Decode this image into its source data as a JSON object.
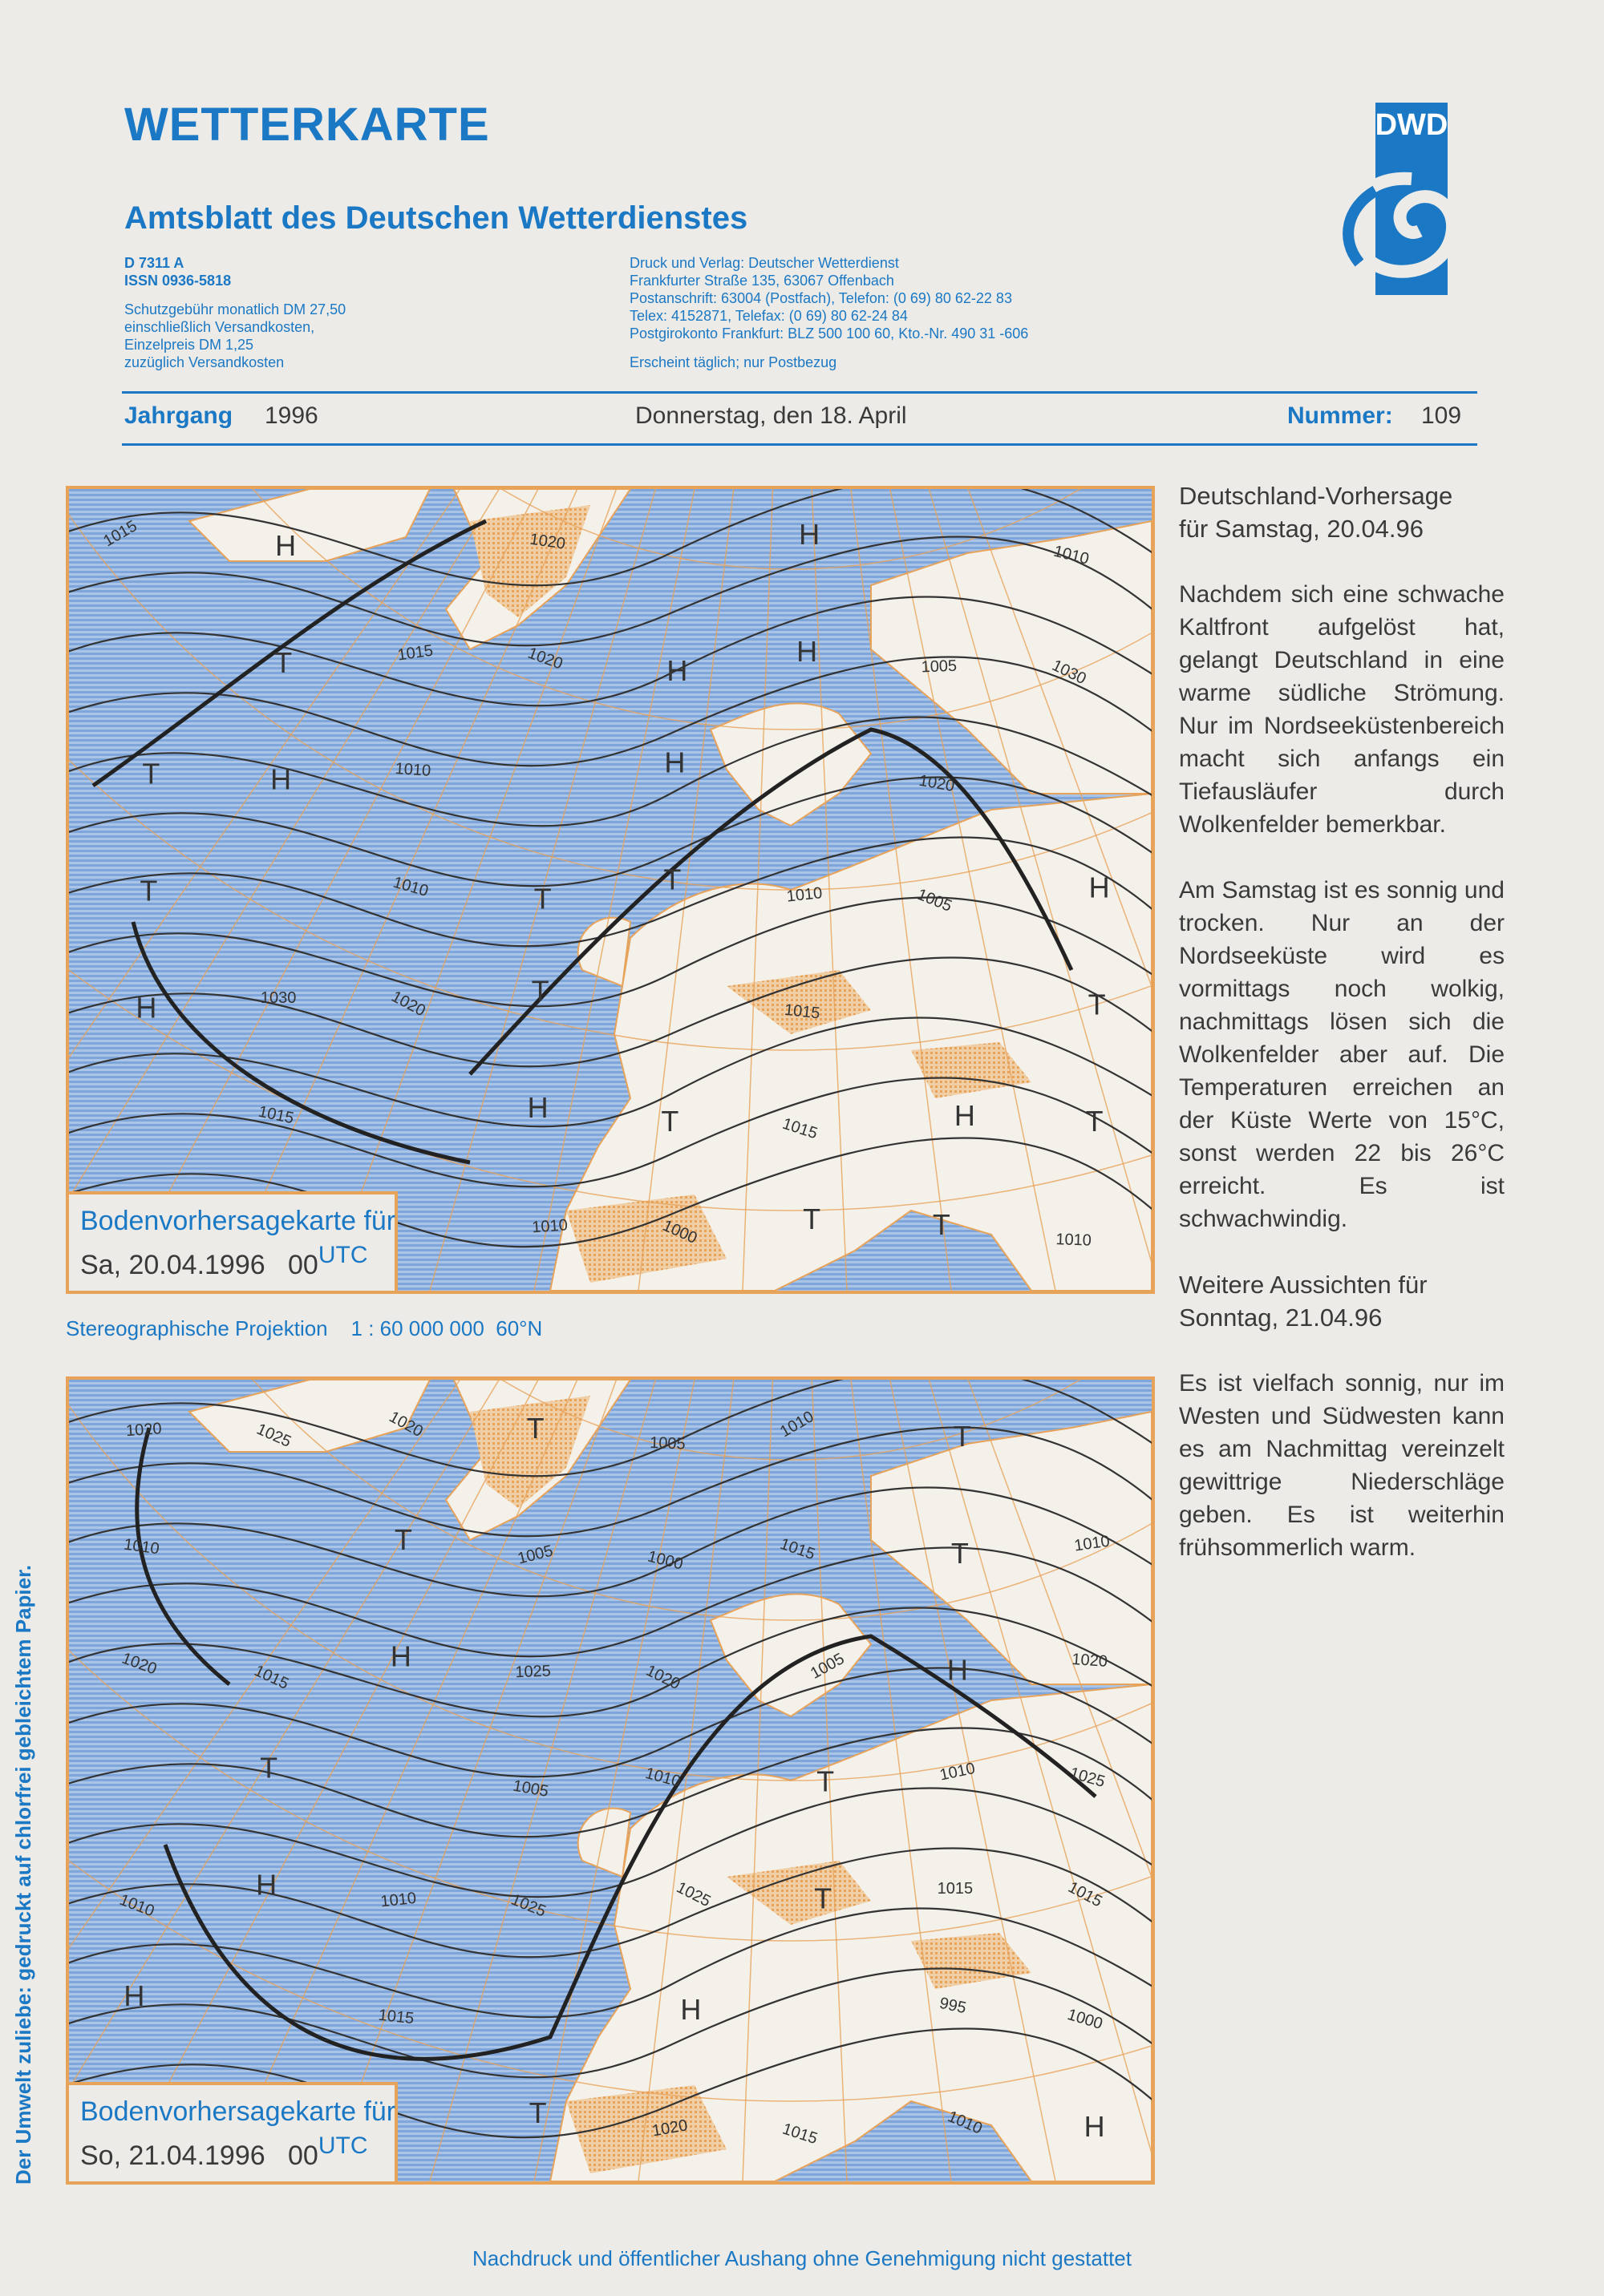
{
  "header": {
    "title": "WETTERKARTE",
    "subtitle": "Amtsblatt des Deutschen Wetterdienstes",
    "left_info": {
      "code": "D 7311 A",
      "issn": "ISSN 0936-5818",
      "lines": [
        "Schutzgebühr monatlich DM 27,50",
        "einschließlich Versandkosten,",
        "Einzelpreis DM 1,25",
        "zuzüglich Versandkosten"
      ]
    },
    "right_info": {
      "lines": [
        "Druck und Verlag: Deutscher Wetterdienst",
        "Frankfurter Straße 135, 63067 Offenbach",
        "Postanschrift: 63004 (Postfach), Telefon: (0 69) 80 62-22 83",
        "Telex: 4152871, Telefax: (0 69) 80 62-24 84",
        "Postgirokonto Frankfurt: BLZ 500 100 60, Kto.-Nr. 490 31 -606"
      ],
      "note": "Erscheint täglich; nur Postbezug"
    },
    "logo_text": "DWD",
    "jahrgang_label": "Jahrgang",
    "jahrgang_value": "1996",
    "date": "Donnerstag, den 18. April",
    "nummer_label": "Nummer:",
    "nummer_value": "109"
  },
  "maps": [
    {
      "caption_line1": "Bodenvorhersagekarte für",
      "caption_date": "Sa, 20.04.1996",
      "caption_hour": "00",
      "caption_utc": "UTC",
      "pressure_labels": [
        "1015",
        "1020",
        "1030",
        "1000",
        "1005",
        "1020",
        "1015",
        "1010",
        "1010",
        "1015",
        "1020",
        "1020",
        "1015",
        "1010",
        "1010",
        "1030",
        "1005",
        "1010",
        "1010",
        "1015"
      ],
      "centers": [
        "H",
        "T",
        "H",
        "H",
        "T",
        "T",
        "T",
        "H",
        "T",
        "H",
        "T",
        "H",
        "H",
        "T",
        "T",
        "T",
        "H",
        "H",
        "H",
        "T",
        "T"
      ]
    },
    {
      "caption_line1": "Bodenvorhersagekarte für",
      "caption_date": "So, 21.04.1996",
      "caption_hour": "00",
      "caption_utc": "UTC",
      "pressure_labels": [
        "1010",
        "1015",
        "1020",
        "1025",
        "1025",
        "1020",
        "1015",
        "1025",
        "1000",
        "995",
        "1005",
        "1010",
        "1015",
        "1020",
        "1005",
        "1005",
        "1015",
        "1020",
        "1025",
        "1025",
        "1020",
        "1015",
        "1010",
        "1010",
        "1010",
        "1010",
        "1020",
        "1015",
        "1010",
        "1000",
        "1005",
        "1010"
      ],
      "centers": [
        "H",
        "T",
        "T",
        "H",
        "H",
        "H",
        "T",
        "T",
        "T",
        "T",
        "H",
        "T",
        "T",
        "H"
      ]
    }
  ],
  "projection": "Stereographische Projektion    1 : 60 000 000  60°N",
  "forecast": {
    "heading1": [
      "Deutschland-Vorhersage",
      "für Samstag, 20.04.96"
    ],
    "p1": "Nachdem sich eine schwache Kaltfront aufgelöst hat, gelangt Deutschland in eine warme südliche Strömung. Nur im Nordseeküstenbereich macht sich anfangs ein Tiefausläufer durch Wolkenfelder bemerkbar.",
    "p2": "Am Samstag ist es sonnig und trocken. Nur an der Nordseeküste wird es vormittags noch wolkig, nachmittags lösen sich die Wolkenfelder aber auf. Die Temperaturen erreichen an der Küste Werte von 15°C, sonst werden 22 bis 26°C erreicht. Es ist schwachwindig.",
    "heading2": [
      "Weitere Aussichten für",
      "Sonntag, 21.04.96"
    ],
    "p3": "Es ist vielfach sonnig, nur im Westen und Südwesten kann es am Nachmittag vereinzelt gewittrige Niederschläge geben. Es ist weiterhin frühsommerlich warm."
  },
  "side_note": "Der Umwelt zuliebe: gedruckt auf chlorfrei gebleichtem Papier.",
  "footer": "Nachdruck und öffentlicher Aushang ohne Genehmigung nicht gestattet",
  "colors": {
    "accent_blue": "#1b78c4",
    "map_land_orange": "#e8a35a",
    "sea_blue": "#8fb3df",
    "paper": "#ecebe8"
  }
}
